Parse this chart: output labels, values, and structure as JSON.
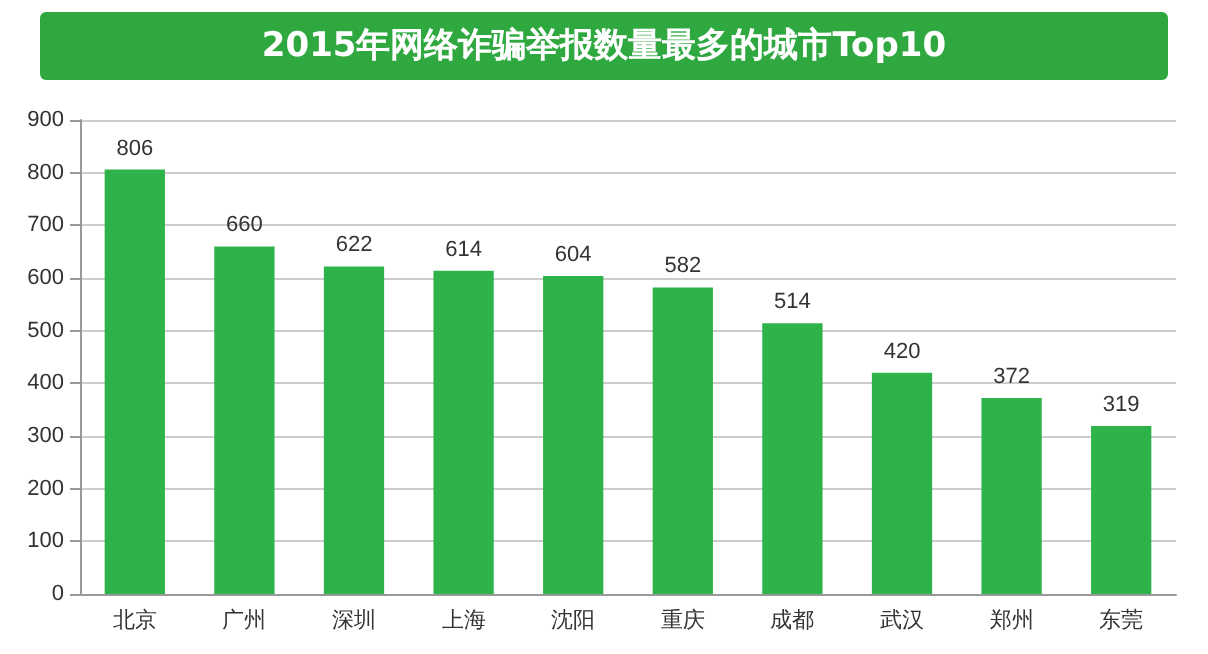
{
  "chart_data": {
    "type": "bar",
    "title": "2015年网络诈骗举报数量最多的城市Top10",
    "categories": [
      "北京",
      "广州",
      "深圳",
      "上海",
      "沈阳",
      "重庆",
      "成都",
      "武汉",
      "郑州",
      "东莞"
    ],
    "values": [
      806,
      660,
      622,
      614,
      604,
      582,
      514,
      420,
      372,
      319
    ],
    "color": "#2db34a",
    "data_labels": true,
    "grid": "y",
    "ylim": [
      0,
      900
    ],
    "yticks": [
      0,
      100,
      200,
      300,
      400,
      500,
      600,
      700,
      800,
      900
    ]
  }
}
